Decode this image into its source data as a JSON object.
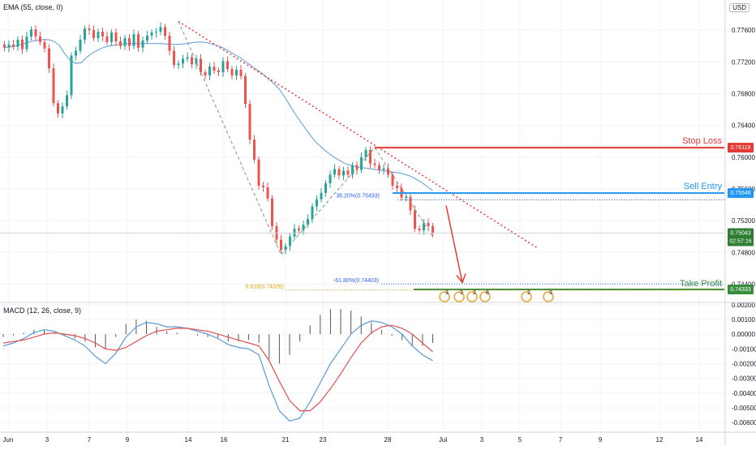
{
  "indicators": {
    "ema_label": "EMA (55, close, 0)",
    "macd_label": "MACD (12, 26, close, 9)",
    "currency": "USD"
  },
  "price_axis": {
    "ticks": [
      "0.77600",
      "0.77200",
      "0.76800",
      "0.76400",
      "0.76000",
      "0.75600",
      "0.75200",
      "0.74800",
      "0.74400"
    ],
    "tick_values": [
      0.776,
      0.772,
      0.768,
      0.764,
      0.76,
      0.756,
      0.752,
      0.748,
      0.744
    ],
    "range": [
      0.7418,
      0.7798
    ]
  },
  "macd_axis": {
    "ticks": [
      "0.00200",
      "0.00100",
      "0.00000",
      "-0.00100",
      "-0.00200",
      "-0.00300",
      "-0.00400",
      "-0.00500",
      "-0.00600"
    ],
    "tick_values": [
      0.002,
      0.001,
      0.0,
      -0.001,
      -0.002,
      -0.003,
      -0.004,
      -0.005,
      -0.006
    ],
    "range": [
      -0.0066,
      0.0021
    ]
  },
  "time_axis": {
    "labels": [
      "Jun",
      "3",
      "7",
      "9",
      "14",
      "16",
      "21",
      "23",
      "28",
      "Jul",
      "3",
      "5",
      "7",
      "9",
      "12",
      "14"
    ]
  },
  "levels": {
    "stop_loss": {
      "label": "Stop Loss",
      "price": "0.76119",
      "value": 0.76119,
      "color": "#e53935"
    },
    "sell_entry": {
      "label": "Sell Entry",
      "price": "0.75548",
      "value": 0.75548,
      "color": "#2196f3"
    },
    "take_profit": {
      "label": "Take Profit",
      "price": "0.74333",
      "value": 0.74333,
      "color": "#388e3c"
    },
    "current": {
      "price": "0.75043",
      "countdown": "02:57:16",
      "value": 0.75043,
      "color": "#2e7d32"
    }
  },
  "fib": {
    "f382": {
      "label": "38.20%(0.75493)",
      "value": 0.75493,
      "color": "#2962ff"
    },
    "f618": {
      "label": "-61.80%(0.74403)",
      "value": 0.74403,
      "color": "#2962ff"
    },
    "f0618": {
      "label": "0.618(0.74326)",
      "value": 0.74326,
      "color": "#e6a100"
    }
  },
  "event_icons": {
    "labels": [
      "3",
      "3",
      "2",
      "8",
      "2",
      "3"
    ]
  },
  "chart_data": [
    {
      "type": "candlestick",
      "title": "",
      "overlay_series": [
        {
          "name": "EMA (55, close, 0)",
          "color": "#5b9bd5"
        }
      ],
      "x_labels": [
        "Jun",
        "3",
        "7",
        "9",
        "14",
        "16",
        "21",
        "23",
        "28",
        "Jul",
        "3",
        "5",
        "7",
        "9",
        "12",
        "14"
      ],
      "ylim": [
        0.7418,
        0.7798
      ],
      "closes": [
        0.7738,
        0.7742,
        0.7739,
        0.7748,
        0.7736,
        0.7752,
        0.7761,
        0.7752,
        0.7745,
        0.7737,
        0.7712,
        0.7668,
        0.7655,
        0.7664,
        0.7678,
        0.7728,
        0.7734,
        0.7748,
        0.7762,
        0.776,
        0.775,
        0.7758,
        0.7752,
        0.7745,
        0.7757,
        0.7746,
        0.774,
        0.775,
        0.774,
        0.7755,
        0.7738,
        0.7747,
        0.7753,
        0.7757,
        0.7758,
        0.7764,
        0.7753,
        0.7734,
        0.7716,
        0.7718,
        0.7724,
        0.7726,
        0.7717,
        0.7724,
        0.7707,
        0.7703,
        0.7714,
        0.7709,
        0.7707,
        0.7721,
        0.7711,
        0.7703,
        0.771,
        0.7702,
        0.7667,
        0.7622,
        0.7597,
        0.7564,
        0.7562,
        0.7548,
        0.7513,
        0.7496,
        0.7483,
        0.7488,
        0.75,
        0.751,
        0.7508,
        0.7515,
        0.7522,
        0.7538,
        0.7547,
        0.7555,
        0.7567,
        0.7578,
        0.7585,
        0.7577,
        0.7583,
        0.7578,
        0.759,
        0.7584,
        0.76,
        0.7609,
        0.7592,
        0.759,
        0.7584,
        0.7586,
        0.7578,
        0.7564,
        0.7561,
        0.7549,
        0.755,
        0.7533,
        0.751,
        0.7508,
        0.7517,
        0.7513,
        0.7504
      ],
      "ema_approx": [
        0.7738,
        0.7739,
        0.774,
        0.7742,
        0.7744,
        0.7746,
        0.7747,
        0.7748,
        0.7748,
        0.7746,
        0.7741,
        0.773,
        0.7722,
        0.7718,
        0.7719,
        0.7726,
        0.7731,
        0.7735,
        0.7738,
        0.774,
        0.7741,
        0.7742,
        0.7743,
        0.7743,
        0.7743,
        0.7743,
        0.7743,
        0.7743,
        0.7743,
        0.7743,
        0.7742,
        0.7742,
        0.7742,
        0.7743,
        0.7744,
        0.7745,
        0.7745,
        0.7744,
        0.7742,
        0.774,
        0.7737,
        0.7733,
        0.7729,
        0.7725,
        0.772,
        0.7715,
        0.771,
        0.7705,
        0.7699,
        0.7693,
        0.7686,
        0.7676,
        0.7665,
        0.7654,
        0.7644,
        0.7634,
        0.7625,
        0.7617,
        0.7611,
        0.7605,
        0.76,
        0.7596,
        0.7592,
        0.759,
        0.7588,
        0.7587,
        0.7586,
        0.7585,
        0.7584,
        0.7583,
        0.7582,
        0.7581,
        0.758,
        0.7578,
        0.7576,
        0.7572,
        0.7568,
        0.7563,
        0.7558
      ]
    },
    {
      "type": "line",
      "title": "MACD (12, 26, close, 9)",
      "series": [
        {
          "name": "MACD",
          "color": "#5b9bd5"
        },
        {
          "name": "Signal",
          "color": "#e05050"
        }
      ],
      "ylim": [
        -0.0066,
        0.0021
      ],
      "macd": [
        -0.0008,
        -0.0006,
        -0.0003,
        0.0001,
        0.0003,
        0.0002,
        -0.0001,
        -0.0004,
        -0.0008,
        -0.0015,
        -0.002,
        -0.0013,
        -0.0002,
        0.0005,
        0.0008,
        0.0007,
        0.0005,
        0.0005,
        0.0004,
        0.0002,
        0.0,
        -0.0003,
        -0.0007,
        -0.0009,
        -0.001,
        -0.0014,
        -0.0035,
        -0.0052,
        -0.0059,
        -0.0057,
        -0.0046,
        -0.0033,
        -0.002,
        -0.001,
        0.0,
        0.0006,
        0.0009,
        0.0008,
        0.0005,
        0.0,
        -0.0008,
        -0.0014,
        -0.0018
      ],
      "signal": [
        -0.0006,
        -0.0005,
        -0.0004,
        -0.0002,
        0.0,
        0.0001,
        0.0,
        -0.0001,
        -0.0003,
        -0.0006,
        -0.001,
        -0.0011,
        -0.0009,
        -0.0005,
        -0.0001,
        0.0002,
        0.0003,
        0.0004,
        0.0004,
        0.0003,
        0.0002,
        0.0,
        -0.0002,
        -0.0004,
        -0.0006,
        -0.0008,
        -0.0018,
        -0.0032,
        -0.0045,
        -0.0052,
        -0.0052,
        -0.0046,
        -0.0037,
        -0.0027,
        -0.0016,
        -0.0006,
        0.0001,
        0.0005,
        0.0006,
        0.0004,
        0.0,
        -0.0006,
        -0.0012
      ],
      "histogram": [
        -0.0002,
        -0.0001,
        0.0001,
        0.0003,
        0.0003,
        0.0001,
        -0.0001,
        -0.0003,
        -0.0005,
        -0.0009,
        -0.001,
        -0.0002,
        0.0007,
        0.001,
        0.0009,
        0.0005,
        0.0002,
        0.0001,
        0.0,
        -0.0001,
        -0.0002,
        -0.0003,
        -0.0005,
        -0.0005,
        -0.0004,
        -0.0006,
        -0.0017,
        -0.002,
        -0.0014,
        -0.0005,
        0.0006,
        0.0013,
        0.0017,
        0.0017,
        0.0016,
        0.0012,
        0.0008,
        0.0003,
        -0.0001,
        -0.0004,
        -0.0008,
        -0.0008,
        -0.0006
      ]
    }
  ]
}
